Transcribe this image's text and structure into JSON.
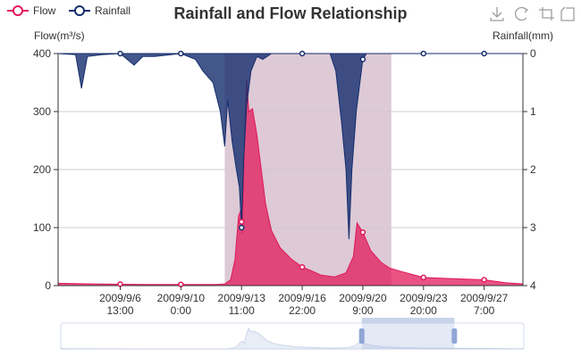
{
  "chart_data": {
    "type": "area",
    "title": "Rainfall and Flow Relationship",
    "legend": [
      {
        "name": "Flow",
        "color": "#e0195a"
      },
      {
        "name": "Rainfall",
        "color": "#152d6e"
      }
    ],
    "legend_placement": "top-left",
    "grid": true,
    "x_range": [
      "2009/9/3 00:00",
      "2009/9/29 12:00"
    ],
    "x_ticks": [
      {
        "date": "2009/9/6 13:00",
        "line1": "2009/9/6",
        "line2": "13:00"
      },
      {
        "date": "2009/9/10 0:00",
        "line1": "2009/9/10",
        "line2": "0:00"
      },
      {
        "date": "2009/9/13 11:00",
        "line1": "2009/9/13",
        "line2": "11:00"
      },
      {
        "date": "2009/9/16 22:00",
        "line1": "2009/9/16",
        "line2": "22:00"
      },
      {
        "date": "2009/9/20 9:00",
        "line1": "2009/9/20",
        "line2": "9:00"
      },
      {
        "date": "2009/9/23 20:00",
        "line1": "2009/9/23",
        "line2": "20:00"
      },
      {
        "date": "2009/9/27 7:00",
        "line1": "2009/9/27",
        "line2": "7:00"
      }
    ],
    "y_left": {
      "label": "Flow(m³/s)",
      "min": 0,
      "max": 400,
      "ticks": [
        "0",
        "100",
        "200",
        "300",
        "400"
      ]
    },
    "y_right": {
      "label": "Rainfall(mm)",
      "min": 0,
      "max": 4,
      "inverse": true,
      "ticks": [
        "0",
        "1",
        "2",
        "3",
        "4"
      ]
    },
    "mark_area": {
      "from": "2009/9/12 12:00",
      "to": "2009/9/22 00:00",
      "color": "#d9c4d2"
    },
    "series": [
      {
        "name": "Flow",
        "color": "#e0195a",
        "axis": "left",
        "points": [
          [
            "2009/9/3 00:00",
            4
          ],
          [
            "2009/9/5 00:00",
            3
          ],
          [
            "2009/9/8 00:00",
            2
          ],
          [
            "2009/9/12 00:00",
            2
          ],
          [
            "2009/9/12 12:00",
            3
          ],
          [
            "2009/9/12 20:00",
            10
          ],
          [
            "2009/9/13 02:00",
            45
          ],
          [
            "2009/9/13 07:00",
            120
          ],
          [
            "2009/9/13 10:00",
            130
          ],
          [
            "2009/9/13 12:00",
            90
          ],
          [
            "2009/9/13 15:00",
            250
          ],
          [
            "2009/9/13 18:00",
            355
          ],
          [
            "2009/9/13 21:00",
            300
          ],
          [
            "2009/9/14 02:00",
            305
          ],
          [
            "2009/9/14 08:00",
            260
          ],
          [
            "2009/9/14 14:00",
            200
          ],
          [
            "2009/9/14 20:00",
            140
          ],
          [
            "2009/9/15 04:00",
            95
          ],
          [
            "2009/9/15 16:00",
            65
          ],
          [
            "2009/9/16 08:00",
            45
          ],
          [
            "2009/9/16 22:00",
            32
          ],
          [
            "2009/9/17 12:00",
            25
          ],
          [
            "2009/9/18 00:00",
            18
          ],
          [
            "2009/9/18 18:00",
            15
          ],
          [
            "2009/9/19 10:00",
            22
          ],
          [
            "2009/9/19 20:00",
            50
          ],
          [
            "2009/9/20 01:00",
            108
          ],
          [
            "2009/9/20 09:00",
            92
          ],
          [
            "2009/9/20 20:00",
            60
          ],
          [
            "2009/9/21 10:00",
            40
          ],
          [
            "2009/9/21 22:00",
            30
          ],
          [
            "2009/9/22 12:00",
            25
          ],
          [
            "2009/9/23 20:00",
            14
          ],
          [
            "2009/9/25 12:00",
            12
          ],
          [
            "2009/9/27 07:00",
            10
          ],
          [
            "2009/9/28 12:00",
            5
          ],
          [
            "2009/9/29 12:00",
            3
          ]
        ],
        "markers": [
          "2009/9/6 13:00",
          "2009/9/10 0:00",
          "2009/9/13 11:00",
          "2009/9/16 22:00",
          "2009/9/20 9:00",
          "2009/9/23 20:00",
          "2009/9/27 7:00"
        ]
      },
      {
        "name": "Rainfall",
        "color": "#152d6e",
        "axis": "right",
        "points": [
          [
            "2009/9/3 00:00",
            0
          ],
          [
            "2009/9/4 00:00",
            0.02
          ],
          [
            "2009/9/4 08:00",
            0.6
          ],
          [
            "2009/9/4 16:00",
            0.05
          ],
          [
            "2009/9/5 12:00",
            0.02
          ],
          [
            "2009/9/6 13:00",
            0
          ],
          [
            "2009/9/7 08:00",
            0.2
          ],
          [
            "2009/9/7 20:00",
            0.05
          ],
          [
            "2009/9/8 12:00",
            0.05
          ],
          [
            "2009/9/10 0:00",
            0
          ],
          [
            "2009/9/10 20:00",
            0.1
          ],
          [
            "2009/9/11 06:00",
            0.3
          ],
          [
            "2009/9/11 20:00",
            0.5
          ],
          [
            "2009/9/12 06:00",
            1.0
          ],
          [
            "2009/9/12 12:00",
            1.6
          ],
          [
            "2009/9/12 16:00",
            0.8
          ],
          [
            "2009/9/12 22:00",
            1.5
          ],
          [
            "2009/9/13 04:00",
            2.0
          ],
          [
            "2009/9/13 08:00",
            2.3
          ],
          [
            "2009/9/13 11:00",
            3.0
          ],
          [
            "2009/9/13 14:00",
            1.8
          ],
          [
            "2009/9/13 18:00",
            0.9
          ],
          [
            "2009/9/14 00:00",
            0.3
          ],
          [
            "2009/9/14 08:00",
            0.05
          ],
          [
            "2009/9/14 16:00",
            0.1
          ],
          [
            "2009/9/15 04:00",
            0
          ],
          [
            "2009/9/18 12:00",
            0
          ],
          [
            "2009/9/18 20:00",
            0.3
          ],
          [
            "2009/9/19 04:00",
            1.2
          ],
          [
            "2009/9/19 10:00",
            2.0
          ],
          [
            "2009/9/19 14:00",
            3.2
          ],
          [
            "2009/9/19 18:00",
            2.0
          ],
          [
            "2009/9/20 00:00",
            1.0
          ],
          [
            "2009/9/20 09:00",
            0.1
          ],
          [
            "2009/9/20 14:00",
            0
          ],
          [
            "2009/9/29 12:00",
            0
          ]
        ],
        "markers": [
          "2009/9/6 13:00",
          "2009/9/10 0:00",
          "2009/9/13 11:00",
          "2009/9/16 22:00",
          "2009/9/20 9:00",
          "2009/9/23 20:00",
          "2009/9/27 7:00"
        ]
      }
    ]
  },
  "toolbar": {
    "icons": [
      "save-as-image-icon",
      "restore-icon",
      "data-zoom-icon",
      "zoom-reset-icon"
    ]
  },
  "data_zoom": {
    "start_percent": 65,
    "end_percent": 85
  }
}
